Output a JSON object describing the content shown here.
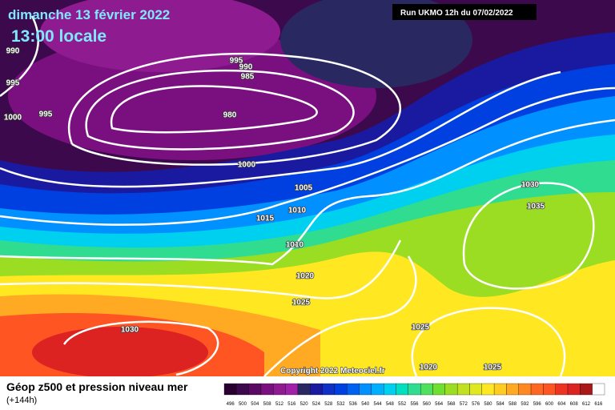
{
  "header": {
    "date": "dimanche 13 février 2022",
    "time": "13:00 locale",
    "run": "Run UKMO 12h du 07/02/2022"
  },
  "isobar_labels": [
    990,
    995,
    1000,
    995,
    995,
    990,
    985,
    980,
    1000,
    1005,
    1010,
    1015,
    1010,
    1020,
    1025,
    1030,
    1030,
    1035,
    1025,
    1020,
    1025
  ],
  "copyright": "Copyright 2022 Meteociel.fr",
  "footer": {
    "title": "Géop z500 et pression niveau mer",
    "subtitle": "(+144h)"
  },
  "scale": [
    496,
    500,
    504,
    508,
    512,
    516,
    520,
    524,
    528,
    532,
    536,
    540,
    544,
    548,
    552,
    556,
    560,
    564,
    568,
    572,
    576,
    580,
    584,
    588,
    592,
    596,
    600,
    604,
    608,
    612,
    616
  ]
}
